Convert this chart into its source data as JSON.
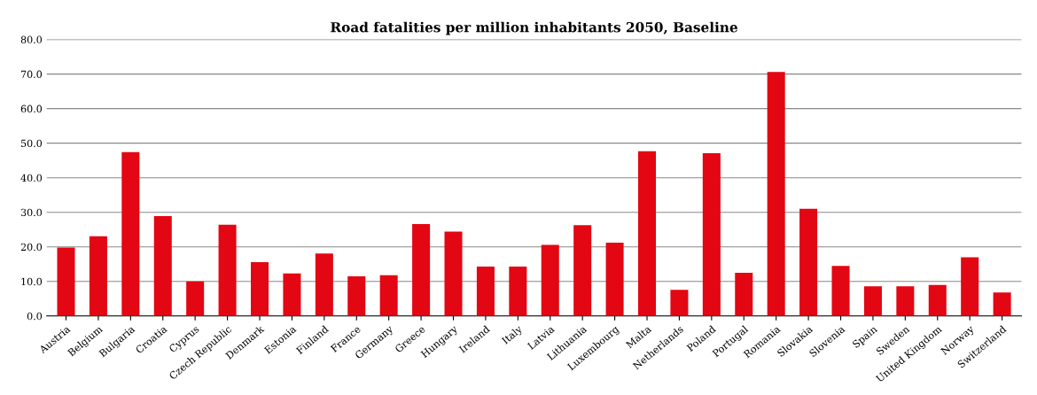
{
  "chart_data": {
    "type": "bar",
    "title": "Road fatalities per million inhabitants 2050, Baseline",
    "categories": [
      "Austria",
      "Belgium",
      "Bulgaria",
      "Croatia",
      "Cyprus",
      "Czech Republic",
      "Denmark",
      "Estonia",
      "Finland",
      "France",
      "Germany",
      "Greece",
      "Hungary",
      "Ireland",
      "Italy",
      "Latvia",
      "Lithuania",
      "Luxembourg",
      "Malta",
      "Netherlands",
      "Poland",
      "Portugal",
      "Romania",
      "Slovakia",
      "Slovenia",
      "Spain",
      "Sweden",
      "United Kingdom",
      "Norway",
      "Switzerland"
    ],
    "values": [
      19.8,
      23.1,
      47.4,
      28.9,
      10.0,
      26.4,
      15.6,
      12.3,
      18.1,
      11.5,
      11.8,
      26.6,
      24.4,
      14.3,
      14.3,
      20.6,
      26.3,
      21.2,
      47.7,
      7.6,
      47.1,
      12.5,
      70.6,
      31.0,
      14.5,
      8.6,
      8.6,
      9.0,
      17.0,
      6.8
    ],
    "color": "#e30613",
    "ylim": [
      0,
      80
    ],
    "yticks": [
      {
        "value": 0,
        "label": "0.0"
      },
      {
        "value": 10,
        "label": "10.0"
      },
      {
        "value": 20,
        "label": "20.0"
      },
      {
        "value": 30,
        "label": "30.0"
      },
      {
        "value": 40,
        "label": "40.0"
      },
      {
        "value": 50,
        "label": "50.0"
      },
      {
        "value": 60,
        "label": "60.0"
      },
      {
        "value": 70,
        "label": "70.0"
      },
      {
        "value": 80,
        "label": "80.0"
      }
    ],
    "grid": "y",
    "legend": false
  }
}
